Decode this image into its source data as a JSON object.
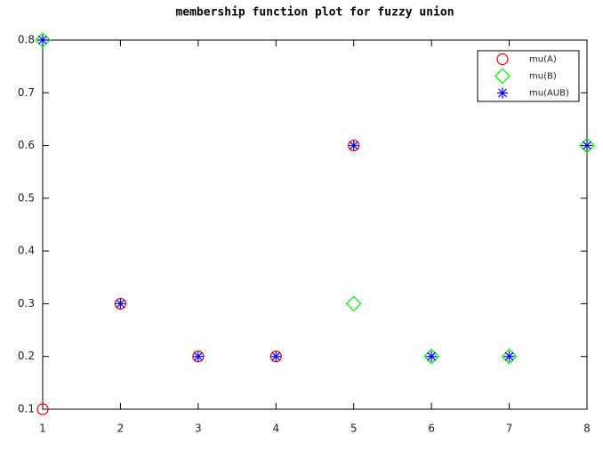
{
  "chart_data": {
    "type": "scatter",
    "title": "membership function plot for fuzzy union",
    "xlim": [
      1,
      8
    ],
    "ylim": [
      0.1,
      0.8
    ],
    "xticks": [
      1,
      2,
      3,
      4,
      5,
      6,
      7,
      8
    ],
    "yticks": [
      0.1,
      0.2,
      0.3,
      0.4,
      0.5,
      0.6,
      0.7,
      0.8
    ],
    "grid": false,
    "legend": "upper right",
    "series": [
      {
        "name": "mu(A)",
        "color": "#ff0000",
        "marker": "circle",
        "x": [
          1,
          2,
          3,
          4,
          5
        ],
        "values": [
          0.1,
          0.3,
          0.2,
          0.2,
          0.6
        ]
      },
      {
        "name": "mu(B)",
        "color": "#00ee00",
        "marker": "diamond",
        "x": [
          1,
          5,
          6,
          7,
          8
        ],
        "values": [
          0.8,
          0.3,
          0.2,
          0.2,
          0.6
        ]
      },
      {
        "name": "mu(AUB)",
        "color": "#0000ff",
        "marker": "star",
        "x": [
          1,
          2,
          3,
          4,
          5,
          6,
          7,
          8
        ],
        "values": [
          0.8,
          0.3,
          0.2,
          0.2,
          0.6,
          0.2,
          0.2,
          0.6
        ]
      }
    ]
  }
}
